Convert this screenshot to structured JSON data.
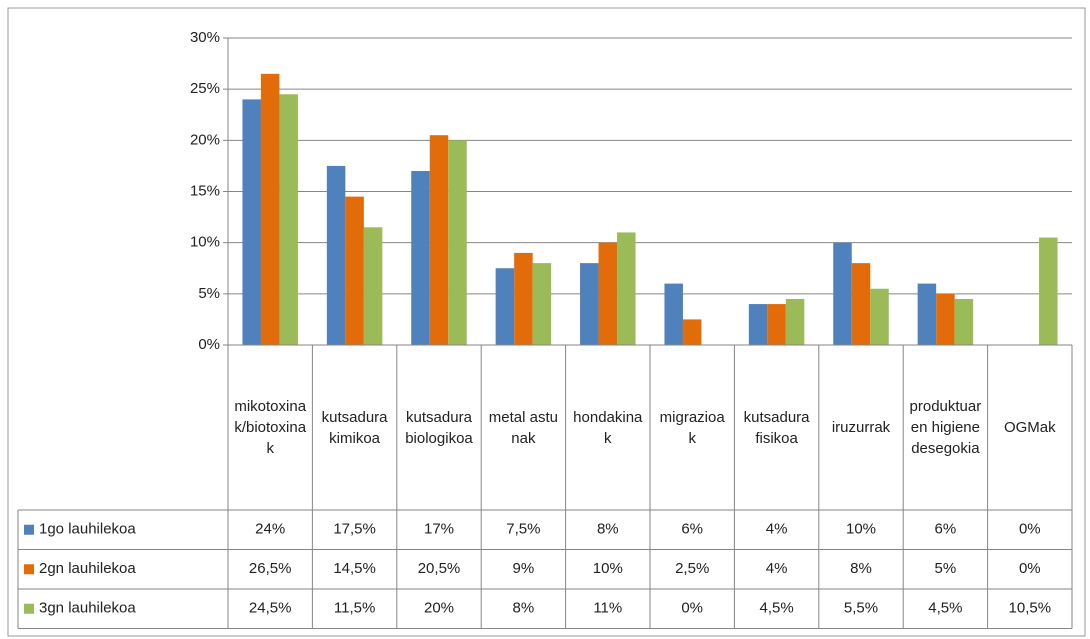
{
  "chart_data": {
    "type": "bar",
    "categories": [
      "mikotoxinak/biotoxinak",
      "kutsadura kimikoa",
      "kutsadura biologikoa",
      "metal astunak",
      "hondakinak",
      "migrazioak",
      "kutsadura fisikoa",
      "iruzurrak",
      "produktuaren higiene desegokia",
      "OGMak"
    ],
    "series": [
      {
        "name": "1go lauhilekoa",
        "color": "#4f81bd",
        "values": [
          24,
          17.5,
          17,
          7.5,
          8,
          6,
          4,
          10,
          6,
          0
        ],
        "value_labels": [
          "24%",
          "17,5%",
          "17%",
          "7,5%",
          "8%",
          "6%",
          "4%",
          "10%",
          "6%",
          "0%"
        ]
      },
      {
        "name": "2gn lauhilekoa",
        "color": "#e36c0a",
        "values": [
          26.5,
          14.5,
          20.5,
          9,
          10,
          2.5,
          4,
          8,
          5,
          0
        ],
        "value_labels": [
          "26,5%",
          "14,5%",
          "20,5%",
          "9%",
          "10%",
          "2,5%",
          "4%",
          "8%",
          "5%",
          "0%"
        ]
      },
      {
        "name": "3gn lauhilekoa",
        "color": "#9bbb59",
        "values": [
          24.5,
          11.5,
          20,
          8,
          11,
          0,
          4.5,
          5.5,
          4.5,
          10.5
        ],
        "value_labels": [
          "24,5%",
          "11,5%",
          "20%",
          "8%",
          "11%",
          "0%",
          "4,5%",
          "5,5%",
          "4,5%",
          "10,5%"
        ]
      }
    ],
    "ylim": [
      0,
      30
    ],
    "yticks": [
      {
        "value": 0,
        "label": "0%"
      },
      {
        "value": 5,
        "label": "5%"
      },
      {
        "value": 10,
        "label": "10%"
      },
      {
        "value": 15,
        "label": "15%"
      },
      {
        "value": 20,
        "label": "20%"
      },
      {
        "value": 25,
        "label": "25%"
      },
      {
        "value": 30,
        "label": "30%"
      }
    ],
    "grid": true
  }
}
